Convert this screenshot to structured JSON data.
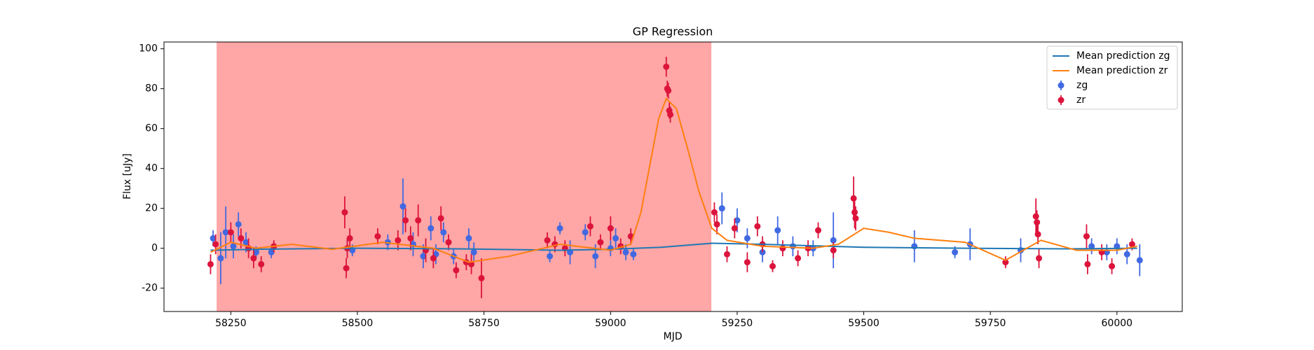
{
  "chart_data": {
    "type": "scatter",
    "title": "GP Regression",
    "x_label": "MJD",
    "y_label": "Flux [uJy]",
    "xlim": [
      58118,
      60129
    ],
    "ylim": [
      -31.7,
      103.4
    ],
    "xticks": [
      58250,
      58500,
      58750,
      59000,
      59250,
      59500,
      59750,
      60000
    ],
    "yticks": [
      -20,
      0,
      20,
      40,
      60,
      80,
      100
    ],
    "legend": "upper right",
    "shaded_region": {
      "xmin": 58222,
      "xmax": 59199,
      "color": "#ffa6a6"
    },
    "lines": [
      {
        "name": "Mean prediction zg",
        "color": "#1f77b4",
        "x": [
          58210,
          58300,
          58500,
          58700,
          58900,
          59000,
          59100,
          59200,
          59300,
          59500,
          59700,
          59900,
          60040
        ],
        "values": [
          -1,
          -0.5,
          0,
          -0.3,
          -1,
          -0.5,
          0.5,
          2.5,
          2,
          0.5,
          0,
          -0.3,
          0
        ]
      },
      {
        "name": "Mean prediction zr",
        "color": "#ff7f0e",
        "x": [
          58210,
          58250,
          58300,
          58370,
          58450,
          58550,
          58650,
          58720,
          58800,
          58900,
          59000,
          59040,
          59060,
          59080,
          59095,
          59110,
          59130,
          59150,
          59175,
          59200,
          59230,
          59300,
          59400,
          59450,
          59500,
          59550,
          59600,
          59700,
          59780,
          59850,
          59920,
          60000,
          60040
        ],
        "values": [
          -2,
          3,
          0,
          2,
          -0.5,
          3,
          0,
          -7,
          -4,
          2,
          -1,
          2,
          18,
          45,
          65,
          75,
          70,
          52,
          28,
          10,
          4,
          1,
          0,
          2,
          10,
          8,
          5,
          3,
          -6,
          4,
          -1,
          -1,
          1
        ]
      }
    ],
    "series": [
      {
        "name": "zg",
        "color": "#4169e1",
        "x": [
          58215,
          58230,
          58240,
          58255,
          58265,
          58280,
          58300,
          58330,
          58480,
          58490,
          58560,
          58590,
          58610,
          58630,
          58645,
          58655,
          58670,
          58690,
          58720,
          58730,
          58880,
          58900,
          58920,
          58950,
          58970,
          59000,
          59010,
          59030,
          59045,
          59220,
          59250,
          59270,
          59300,
          59330,
          59360,
          59400,
          59440,
          59600,
          59680,
          59710,
          59810,
          59950,
          59980,
          60000,
          60020,
          60045
        ],
        "values": [
          5,
          -5,
          8,
          1,
          12,
          3,
          -2,
          -2,
          0,
          -1,
          3,
          21,
          2,
          -4,
          10,
          -3,
          8,
          -4,
          5,
          -2,
          -4,
          10,
          -2,
          8,
          -4,
          0,
          5,
          -2,
          -3,
          20,
          14,
          5,
          -2,
          9,
          1,
          0,
          4,
          1,
          -2,
          2,
          -1,
          1,
          -2,
          1,
          -3,
          -6
        ],
        "errors": [
          4,
          13,
          13,
          6,
          6,
          5,
          3,
          3,
          4,
          3,
          4,
          14,
          6,
          6,
          6,
          5,
          5,
          4,
          5,
          5,
          3,
          3,
          6,
          4,
          6,
          4,
          5,
          4,
          3,
          8,
          6,
          5,
          5,
          7,
          5,
          4,
          14,
          8,
          3,
          8,
          6,
          4,
          4,
          4,
          5,
          8
        ]
      },
      {
        "name": "zr",
        "color": "#dc143c",
        "x": [
          58210,
          58220,
          58250,
          58270,
          58285,
          58295,
          58310,
          58335,
          58475,
          58478,
          58480,
          58485,
          58540,
          58580,
          58595,
          58605,
          58620,
          58635,
          58650,
          58665,
          58680,
          58695,
          58715,
          58725,
          58745,
          58875,
          58890,
          58910,
          58960,
          58980,
          59000,
          59020,
          59040,
          59110,
          59112,
          59114,
          59116,
          59118,
          59205,
          59210,
          59230,
          59245,
          59270,
          59290,
          59300,
          59320,
          59340,
          59370,
          59390,
          59410,
          59440,
          59480,
          59482,
          59484,
          59780,
          59840,
          59842,
          59844,
          59846,
          59940,
          59942,
          59970,
          59990,
          60030
        ],
        "values": [
          -8,
          2,
          8,
          5,
          0,
          -5,
          -8,
          1,
          18,
          -10,
          0,
          5,
          6,
          4,
          14,
          5,
          14,
          -1,
          -5,
          15,
          3,
          -11,
          -7,
          -8,
          -15,
          4,
          2,
          0,
          11,
          3,
          10,
          1,
          6,
          91,
          80,
          79,
          69,
          67,
          18,
          12,
          -3,
          10,
          -7,
          11,
          2,
          -9,
          0,
          -5,
          0,
          9,
          -1,
          25,
          18,
          15,
          -7,
          16,
          13,
          7,
          -5,
          6,
          -8,
          -2,
          -9,
          2
        ],
        "errors": [
          5,
          5,
          5,
          5,
          5,
          5,
          4,
          3,
          8,
          5,
          5,
          5,
          4,
          5,
          6,
          6,
          8,
          6,
          5,
          6,
          4,
          4,
          4,
          5,
          10,
          4,
          4,
          4,
          5,
          4,
          6,
          4,
          4,
          5,
          4,
          4,
          4,
          4,
          5,
          5,
          4,
          5,
          5,
          5,
          4,
          3,
          4,
          4,
          4,
          4,
          4,
          11,
          8,
          6,
          3,
          9,
          6,
          5,
          5,
          6,
          5,
          4,
          4,
          3
        ]
      }
    ]
  }
}
